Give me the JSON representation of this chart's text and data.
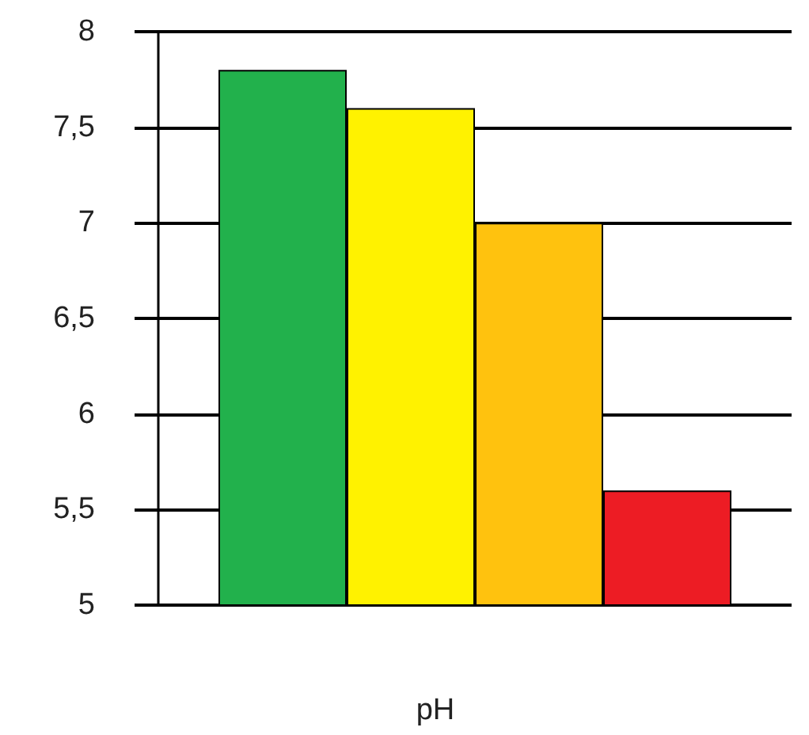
{
  "chart_data": {
    "type": "bar",
    "categories": [
      null
    ],
    "xlabel": "pH",
    "series": [
      {
        "color": "#22b14c",
        "values": [
          7.8
        ]
      },
      {
        "color": "#fff200",
        "values": [
          7.6
        ]
      },
      {
        "color": "#ffc20e",
        "values": [
          7.0
        ]
      },
      {
        "color": "#ed1c24",
        "values": [
          5.6
        ]
      }
    ],
    "ylim": [
      5,
      8
    ],
    "yticks": [
      5,
      {
        "value": 5.5,
        "label": "5,5"
      },
      6,
      {
        "value": 6.5,
        "label": "6,5"
      },
      7,
      {
        "value": 7.5,
        "label": "7,5"
      },
      8
    ],
    "grid": "y"
  }
}
